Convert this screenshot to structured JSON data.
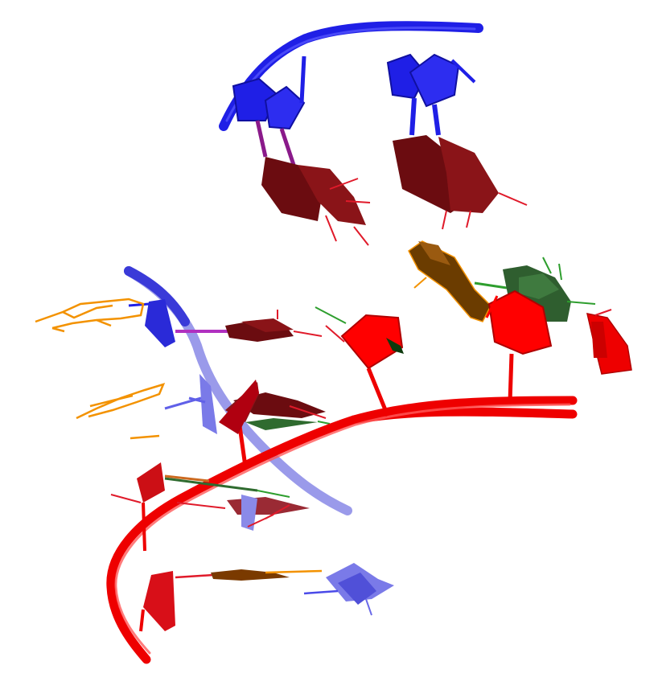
{
  "image": {
    "kind": "3D molecular cartoon rendering (nucleic acid backbone with nucleotide bases)",
    "background": "#ffffff"
  },
  "colors": {
    "blue_backbone": "#1f1fe6",
    "blue_faded": "#8a8ae8",
    "red_backbone": "#ee0000",
    "dark_red_base": "#7a0f14",
    "orange": "#f39200",
    "brown": "#7a4a00",
    "green": "#2f6b2f",
    "green_line": "#2e9e2e",
    "magenta_link": "#8a1a8a"
  }
}
